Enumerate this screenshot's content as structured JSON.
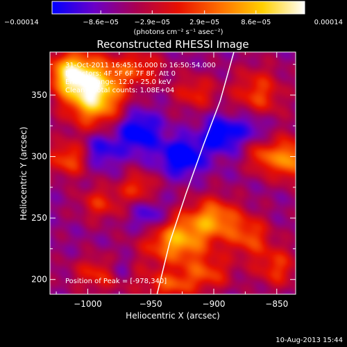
{
  "chart_data": {
    "type": "heatmap",
    "title": "Reconstructed RHESSI Image",
    "xlabel": "Heliocentric X (arcsec)",
    "ylabel": "Heliocentric Y (arcsec)",
    "xlim": [
      -1030,
      -835
    ],
    "ylim": [
      188,
      385
    ],
    "xticks": [
      -1000,
      -950,
      -900,
      -850
    ],
    "xtick_labels": [
      "−1000",
      "−950",
      "−900",
      "−850"
    ],
    "yticks": [
      200,
      250,
      300,
      350
    ],
    "ytick_labels": [
      "200",
      "250",
      "300",
      "350"
    ],
    "colorbar": {
      "min": -0.00014,
      "max": 0.00014,
      "ticks": [
        -0.00014,
        -8.6e-05,
        -2.9e-05,
        2.9e-05,
        8.6e-05,
        0.00014
      ],
      "tick_labels": [
        "−0.00014",
        "−8.6e−05",
        "−2.9e−05",
        "2.9e−05",
        "8.6e−05",
        "0.00014"
      ],
      "units_label": "(photons cm⁻² s⁻¹ asec⁻²)",
      "stops": [
        "#0000ff",
        "#6a00c8",
        "#aa0050",
        "#e81000",
        "#ff7000",
        "#ffd000",
        "#ffffff"
      ]
    },
    "info_lines": [
      "31-Oct-2011 16:45:16.000 to 16:50:54.000",
      "Detectors: 4F 5F 6F 7F 8F, Att 0",
      "Energy Range: 12.0 - 25.0 keV",
      "Clean    Total counts: 1.08E+04"
    ],
    "peak_label": "Position of Peak = [-978,340]",
    "peak_position": [
      -978,
      340
    ],
    "limb_curve": [
      [
        -945,
        188
      ],
      [
        -935,
        230
      ],
      [
        -922,
        270
      ],
      [
        -908,
        310
      ],
      [
        -895,
        345
      ],
      [
        -884,
        385
      ]
    ],
    "sources": [
      {
        "x": -995,
        "y": 352,
        "amp": 1.25,
        "sx": 16,
        "sy": 18
      },
      {
        "x": -1015,
        "y": 368,
        "amp": 0.9,
        "sx": 12,
        "sy": 12
      },
      {
        "x": -960,
        "y": 372,
        "amp": 0.5,
        "sx": 14,
        "sy": 10
      },
      {
        "x": -915,
        "y": 352,
        "amp": 0.45,
        "sx": 12,
        "sy": 10
      },
      {
        "x": -865,
        "y": 350,
        "amp": 0.55,
        "sx": 14,
        "sy": 16
      },
      {
        "x": -840,
        "y": 298,
        "amp": 0.85,
        "sx": 10,
        "sy": 12
      },
      {
        "x": -862,
        "y": 300,
        "amp": 0.55,
        "sx": 8,
        "sy": 10
      },
      {
        "x": -1015,
        "y": 298,
        "amp": 0.6,
        "sx": 12,
        "sy": 10
      },
      {
        "x": -990,
        "y": 262,
        "amp": 0.45,
        "sx": 12,
        "sy": 10
      },
      {
        "x": -960,
        "y": 275,
        "amp": 0.5,
        "sx": 10,
        "sy": 9
      },
      {
        "x": -930,
        "y": 232,
        "amp": 0.9,
        "sx": 18,
        "sy": 14
      },
      {
        "x": -900,
        "y": 250,
        "amp": 0.75,
        "sx": 14,
        "sy": 12
      },
      {
        "x": -872,
        "y": 235,
        "amp": 0.55,
        "sx": 12,
        "sy": 12
      },
      {
        "x": -985,
        "y": 205,
        "amp": 0.55,
        "sx": 18,
        "sy": 10
      },
      {
        "x": -935,
        "y": 195,
        "amp": 0.55,
        "sx": 14,
        "sy": 8
      },
      {
        "x": -905,
        "y": 205,
        "amp": 0.5,
        "sx": 14,
        "sy": 10
      },
      {
        "x": -850,
        "y": 210,
        "amp": 0.5,
        "sx": 12,
        "sy": 12
      },
      {
        "x": -925,
        "y": 300,
        "amp": -0.7,
        "sx": 12,
        "sy": 10
      },
      {
        "x": -960,
        "y": 320,
        "amp": -0.6,
        "sx": 12,
        "sy": 12
      },
      {
        "x": -895,
        "y": 318,
        "amp": -0.6,
        "sx": 10,
        "sy": 10
      },
      {
        "x": -990,
        "y": 305,
        "amp": -0.45,
        "sx": 10,
        "sy": 10
      },
      {
        "x": -950,
        "y": 250,
        "amp": -0.45,
        "sx": 10,
        "sy": 10
      },
      {
        "x": -975,
        "y": 208,
        "amp": -0.5,
        "sx": 8,
        "sy": 8
      },
      {
        "x": -870,
        "y": 325,
        "amp": -0.4,
        "sx": 10,
        "sy": 10
      }
    ]
  },
  "footer": {
    "date_stamp": "10-Aug-2013 15:44"
  }
}
